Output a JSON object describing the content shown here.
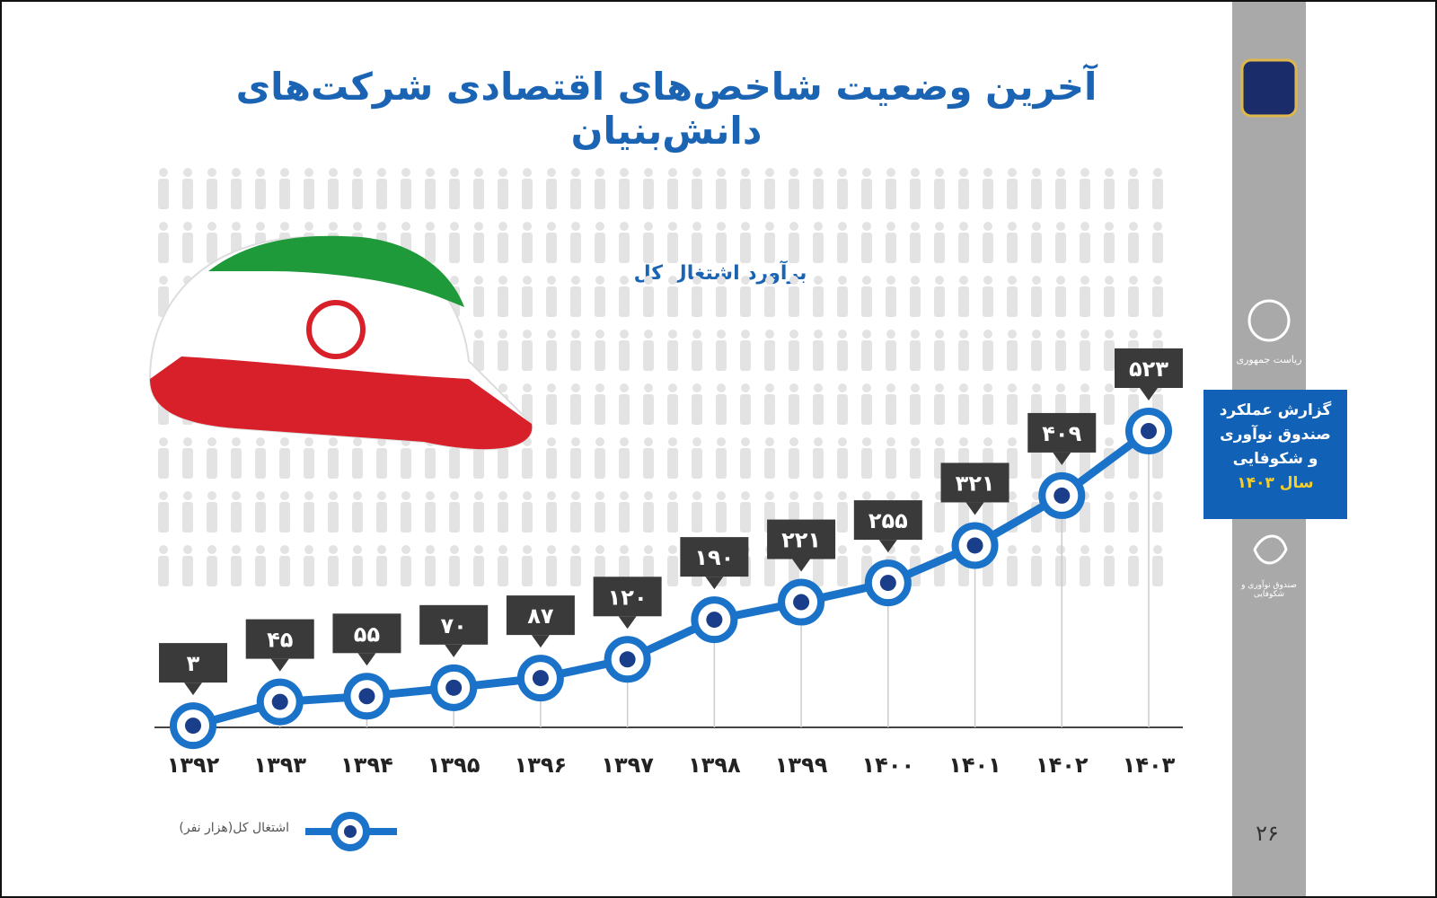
{
  "title": "آخرین وضعیت شاخص‌های اقتصادی شرکت‌های دانش‌بنیان",
  "sidebar": {
    "report_line1": "گزارش عملکرد",
    "report_line2": "صندوق نوآوری",
    "report_line3": "و شکوفایی",
    "report_year": "سال ۱۴۰۳",
    "logo_text": "ریاست جمهوری",
    "fund_text": "صندوق نوآوری و شکوفایی"
  },
  "page_number": "۲۶",
  "colors": {
    "accent": "#1b64b4",
    "line": "#1a73c8",
    "label_box": "#3a3a3a",
    "sidebar": "#a9a9a9",
    "report_box": "#1161b6",
    "year_highlight": "#f5d02a"
  },
  "chart_data": {
    "type": "line",
    "title": "برآورد اشتغال کل",
    "categories": [
      "۱۳۹۲",
      "۱۳۹۳",
      "۱۳۹۴",
      "۱۳۹۵",
      "۱۳۹۶",
      "۱۳۹۷",
      "۱۳۹۸",
      "۱۳۹۹",
      "۱۴۰۰",
      "۱۴۰۱",
      "۱۴۰۲",
      "۱۴۰۳"
    ],
    "series": [
      {
        "name": "اشتغال کل(هزار نفر)",
        "values": [
          3,
          45,
          55,
          70,
          87,
          120,
          190,
          221,
          255,
          321,
          409,
          523
        ],
        "data_labels": [
          "۳",
          "۴۵",
          "۵۵",
          "۷۰",
          "۸۷",
          "۱۲۰",
          "۱۹۰",
          "۲۲۱",
          "۲۵۵",
          "۳۲۱",
          "۴۰۹",
          "۵۲۳"
        ]
      }
    ],
    "legend_position": "bottom-left",
    "grid": false
  }
}
